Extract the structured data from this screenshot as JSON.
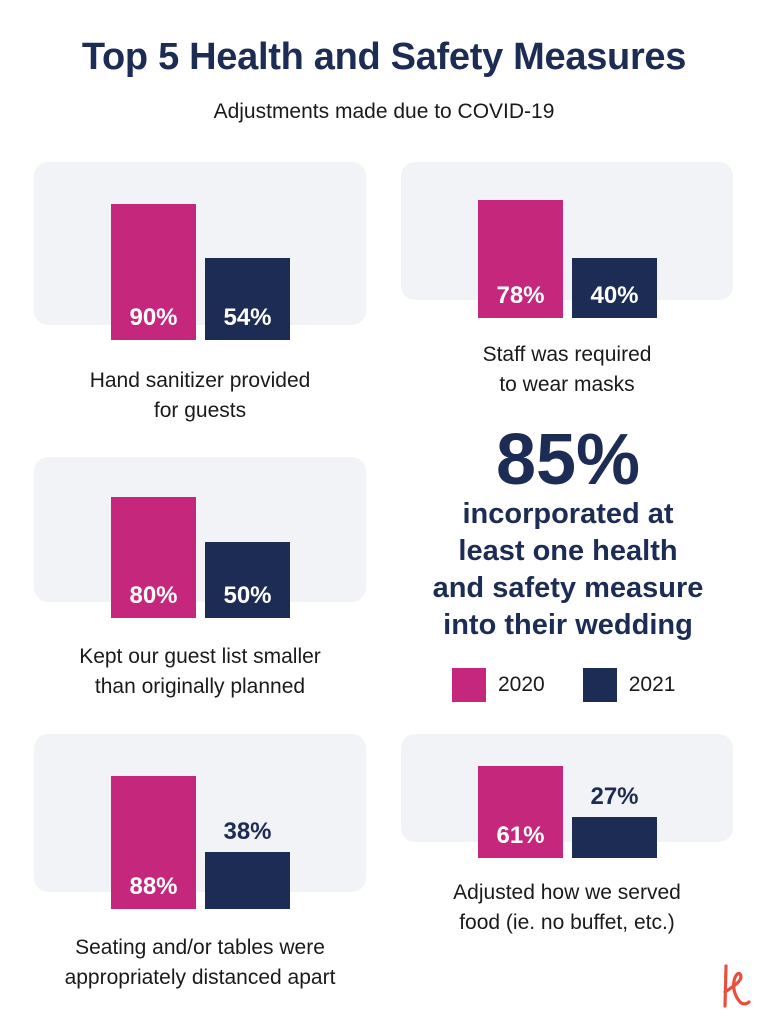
{
  "header": {
    "title": "Top 5 Health and Safety Measures",
    "subtitle": "Adjustments made due to COVID-19"
  },
  "chart_data": {
    "type": "bar",
    "series": [
      {
        "name": "2020",
        "values": [
          90,
          78,
          80,
          88,
          61
        ]
      },
      {
        "name": "2021",
        "values": [
          54,
          40,
          50,
          38,
          27
        ]
      }
    ],
    "categories": [
      "Hand sanitizer provided\nfor guests",
      "Staff was required\nto wear masks",
      "Kept our guest list smaller\nthan originally planned",
      "Seating and/or tables were\nappropriately distanced apart",
      "Adjusted how we served\nfood (ie. no buffet, etc.)"
    ],
    "value_labels": [
      [
        "90%",
        "54%"
      ],
      [
        "78%",
        "40%"
      ],
      [
        "80%",
        "50%"
      ],
      [
        "88%",
        "38%"
      ],
      [
        "61%",
        "27%"
      ]
    ],
    "legend_position": "right-middle",
    "colors": {
      "2020": "#c4277c",
      "2021": "#1c2c55"
    }
  },
  "callout": {
    "value": "85%",
    "text": "incorporated at\nleast one health\nand safety measure\ninto their wedding"
  },
  "legend": {
    "items": [
      {
        "label": "2020",
        "color": "#c4277c"
      },
      {
        "label": "2021",
        "color": "#1c2c55"
      }
    ]
  },
  "brand": {
    "logo_icon": "k-logo-icon",
    "color": "#ea4e3d"
  }
}
